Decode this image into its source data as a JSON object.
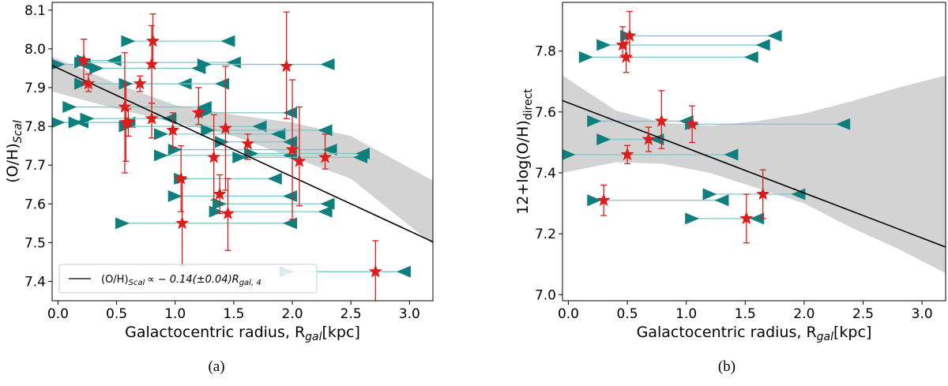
{
  "chart_data": [
    {
      "type": "scatter",
      "panel_label": "(a)",
      "xlabel": "Galactocentric radius, R",
      "xlabel_sub": "gal",
      "xlabel_unit": "[kpc]",
      "ylabel": "(O/H)",
      "ylabel_sub": "Scal",
      "xlim": [
        -0.05,
        3.2
      ],
      "ylim": [
        7.35,
        8.12
      ],
      "xticks": [
        0.0,
        0.5,
        1.0,
        1.5,
        2.0,
        2.5,
        3.0
      ],
      "xtick_labels": [
        "0.0",
        "0.5",
        "1.0",
        "1.5",
        "2.0",
        "2.5",
        "3.0"
      ],
      "yticks": [
        7.4,
        7.5,
        7.6,
        7.7,
        7.8,
        7.9,
        8.0,
        8.1
      ],
      "ytick_labels": [
        "7.4",
        "7.5",
        "7.6",
        "7.7",
        "7.8",
        "7.9",
        "8.0",
        "8.1"
      ],
      "legend": {
        "placement": "lower-left",
        "label_main": "(O/H)",
        "label_sub": "Scal",
        "label_rel": "∝ − 0.14(±0.04)R",
        "label_sub2": "gal, 4"
      },
      "fit": {
        "intercept": 7.95,
        "slope": -0.14
      },
      "band": {
        "x": [
          -0.05,
          0.5,
          1.0,
          1.5,
          2.0,
          2.5,
          3.2
        ],
        "upper": [
          7.98,
          7.91,
          7.855,
          7.83,
          7.81,
          7.775,
          7.66
        ],
        "lower": [
          7.89,
          7.845,
          7.81,
          7.775,
          7.72,
          7.665,
          7.495
        ]
      },
      "points": [
        {
          "x": 0.22,
          "y": 7.97,
          "yerr_low": 0.06,
          "yerr_high": 0.055
        },
        {
          "x": 0.26,
          "y": 7.91,
          "yerr_low": 0.02,
          "yerr_high": 0.025
        },
        {
          "x": 0.57,
          "y": 7.85,
          "yerr_low": 0.17,
          "yerr_high": 0.14
        },
        {
          "x": 0.58,
          "y": 7.81,
          "yerr_low": 0.1,
          "yerr_high": 0.1
        },
        {
          "x": 0.6,
          "y": 7.81,
          "yerr_low": 0.035,
          "yerr_high": 0.035
        },
        {
          "x": 0.7,
          "y": 7.91,
          "yerr_low": 0.02,
          "yerr_high": 0.02
        },
        {
          "x": 0.8,
          "y": 7.82,
          "yerr_low": 0.05,
          "yerr_high": 0.04
        },
        {
          "x": 0.8,
          "y": 7.96,
          "yerr_low": 0.1,
          "yerr_high": 0.1
        },
        {
          "x": 0.81,
          "y": 8.02,
          "yerr_low": 0.06,
          "yerr_high": 0.07
        },
        {
          "x": 0.98,
          "y": 7.79,
          "yerr_low": 0.045,
          "yerr_high": 0.045
        },
        {
          "x": 1.05,
          "y": 7.665,
          "yerr_low": 0.085,
          "yerr_high": 0.085
        },
        {
          "x": 1.06,
          "y": 7.55,
          "yerr_low": 0.11,
          "yerr_high": 0.12
        },
        {
          "x": 1.2,
          "y": 7.835,
          "yerr_low": 0.03,
          "yerr_high": 0.065
        },
        {
          "x": 1.33,
          "y": 7.72,
          "yerr_low": 0.11,
          "yerr_high": 0.11
        },
        {
          "x": 1.38,
          "y": 7.625,
          "yerr_low": 0.05,
          "yerr_high": 0.05
        },
        {
          "x": 1.43,
          "y": 7.795,
          "yerr_low": 0.16,
          "yerr_high": 0.16
        },
        {
          "x": 1.45,
          "y": 7.575,
          "yerr_low": 0.095,
          "yerr_high": 0.09
        },
        {
          "x": 1.62,
          "y": 7.755,
          "yerr_low": 0.04,
          "yerr_high": 0.025
        },
        {
          "x": 1.95,
          "y": 7.955,
          "yerr_low": 0.135,
          "yerr_high": 0.14
        },
        {
          "x": 2.0,
          "y": 7.74,
          "yerr_low": 0.18,
          "yerr_high": 0.18
        },
        {
          "x": 2.06,
          "y": 7.71,
          "yerr_low": 0.115,
          "yerr_high": 0.14
        },
        {
          "x": 2.28,
          "y": 7.72,
          "yerr_low": 0.03,
          "yerr_high": 0.06
        },
        {
          "x": 2.71,
          "y": 7.425,
          "yerr_low": 0.08,
          "yerr_high": 0.08
        }
      ],
      "ranges": [
        {
          "xmin": 0.0,
          "xmax": 0.22,
          "y": 7.96
        },
        {
          "xmin": 0.0,
          "xmax": 0.2,
          "y": 7.81
        },
        {
          "xmin": 0.15,
          "xmax": 0.6,
          "y": 7.81
        },
        {
          "xmin": 0.22,
          "xmax": 0.48,
          "y": 7.97
        },
        {
          "xmin": 0.2,
          "xmax": 1.08,
          "y": 7.91
        },
        {
          "xmin": 0.33,
          "xmax": 1.2,
          "y": 7.95
        },
        {
          "xmin": 0.1,
          "xmax": 1.25,
          "y": 7.85
        },
        {
          "xmin": 0.25,
          "xmax": 0.95,
          "y": 7.82
        },
        {
          "xmin": 0.2,
          "xmax": 1.5,
          "y": 7.965
        },
        {
          "xmin": 0.58,
          "xmax": 1.4,
          "y": 7.91
        },
        {
          "xmin": 0.58,
          "xmax": 1.72,
          "y": 7.8
        },
        {
          "xmin": 0.6,
          "xmax": 1.45,
          "y": 8.02
        },
        {
          "xmin": 1.25,
          "xmax": 2.3,
          "y": 7.96
        },
        {
          "xmin": 0.88,
          "xmax": 1.88,
          "y": 7.78
        },
        {
          "xmin": 1.25,
          "xmax": 1.98,
          "y": 7.835
        },
        {
          "xmin": 1.4,
          "xmax": 1.98,
          "y": 7.76
        },
        {
          "xmin": 1.28,
          "xmax": 2.28,
          "y": 7.79
        },
        {
          "xmin": 0.88,
          "xmax": 1.98,
          "y": 7.725
        },
        {
          "xmin": 1.0,
          "xmax": 2.32,
          "y": 7.74
        },
        {
          "xmin": 1.05,
          "xmax": 1.85,
          "y": 7.665
        },
        {
          "xmin": 1.0,
          "xmax": 1.98,
          "y": 7.62
        },
        {
          "xmin": 1.55,
          "xmax": 2.58,
          "y": 7.72
        },
        {
          "xmin": 1.95,
          "xmax": 2.95,
          "y": 7.425
        },
        {
          "xmin": 0.55,
          "xmax": 1.98,
          "y": 7.55
        },
        {
          "xmin": 1.35,
          "xmax": 2.28,
          "y": 7.58
        },
        {
          "xmin": 1.38,
          "xmax": 2.3,
          "y": 7.6
        },
        {
          "xmin": 1.65,
          "xmax": 2.6,
          "y": 7.73
        }
      ]
    },
    {
      "type": "scatter",
      "panel_label": "(b)",
      "xlabel": "Galactocentric radius, R",
      "xlabel_sub": "gal",
      "xlabel_unit": "[kpc]",
      "ylabel": "12+log(O/H)",
      "ylabel_sub": "direct",
      "xlim": [
        -0.05,
        3.2
      ],
      "ylim": [
        6.98,
        7.96
      ],
      "xticks": [
        0.0,
        0.5,
        1.0,
        1.5,
        2.0,
        2.5,
        3.0
      ],
      "xtick_labels": [
        "0.0",
        "0.5",
        "1.0",
        "1.5",
        "2.0",
        "2.5",
        "3.0"
      ],
      "yticks": [
        7.0,
        7.2,
        7.4,
        7.6,
        7.8
      ],
      "ytick_labels": [
        "7.0",
        "7.2",
        "7.4",
        "7.6",
        "7.8"
      ],
      "fit": {
        "intercept": 7.63,
        "slope": -0.148
      },
      "band": {
        "x": [
          -0.05,
          0.4,
          0.8,
          1.2,
          1.6,
          2.0,
          2.4,
          2.8,
          3.2
        ],
        "upper": [
          7.72,
          7.605,
          7.565,
          7.555,
          7.57,
          7.595,
          7.635,
          7.68,
          7.72
        ],
        "lower": [
          7.4,
          7.435,
          7.43,
          7.4,
          7.35,
          7.3,
          7.22,
          7.15,
          7.07
        ]
      },
      "points": [
        {
          "x": 0.3,
          "y": 7.31,
          "yerr_low": 0.05,
          "yerr_high": 0.05
        },
        {
          "x": 0.46,
          "y": 7.82,
          "yerr_low": 0.04,
          "yerr_high": 0.06
        },
        {
          "x": 0.49,
          "y": 7.78,
          "yerr_low": 0.05,
          "yerr_high": 0.05
        },
        {
          "x": 0.5,
          "y": 7.46,
          "yerr_low": 0.03,
          "yerr_high": 0.03
        },
        {
          "x": 0.52,
          "y": 7.85,
          "yerr_low": 0.07,
          "yerr_high": 0.08
        },
        {
          "x": 0.68,
          "y": 7.51,
          "yerr_low": 0.04,
          "yerr_high": 0.04
        },
        {
          "x": 0.79,
          "y": 7.57,
          "yerr_low": 0.09,
          "yerr_high": 0.1
        },
        {
          "x": 1.05,
          "y": 7.56,
          "yerr_low": 0.06,
          "yerr_high": 0.06
        },
        {
          "x": 1.51,
          "y": 7.25,
          "yerr_low": 0.08,
          "yerr_high": 0.08
        },
        {
          "x": 1.65,
          "y": 7.33,
          "yerr_low": 0.08,
          "yerr_high": 0.08
        }
      ],
      "ranges": [
        {
          "xmin": 0.15,
          "xmax": 1.55,
          "y": 7.78
        },
        {
          "xmin": 0.3,
          "xmax": 1.65,
          "y": 7.82
        },
        {
          "xmin": 0.5,
          "xmax": 1.75,
          "y": 7.85
        },
        {
          "xmin": 0.22,
          "xmax": 1.0,
          "y": 7.57
        },
        {
          "xmin": 0.3,
          "xmax": 0.75,
          "y": 7.51
        },
        {
          "xmin": 0.0,
          "xmax": 1.38,
          "y": 7.46
        },
        {
          "xmin": 1.05,
          "xmax": 2.33,
          "y": 7.56
        },
        {
          "xmin": 0.22,
          "xmax": 1.3,
          "y": 7.31
        },
        {
          "xmin": 1.05,
          "xmax": 1.6,
          "y": 7.25
        },
        {
          "xmin": 1.2,
          "xmax": 1.95,
          "y": 7.33
        }
      ]
    }
  ],
  "colors": {
    "marker": "#0e7f7f",
    "range_line": "#7fc7c7",
    "star": "#dd1c1c",
    "band": "#d3d3d3",
    "fit": "#000000"
  }
}
